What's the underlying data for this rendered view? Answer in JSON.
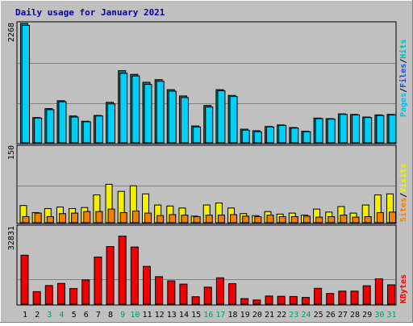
{
  "title": "Daily usage for January 2021",
  "colors": {
    "background": "#c0c0c0",
    "border_dark": "#808080",
    "title": "#0000a0",
    "hits": "#00c0c0",
    "hits_bar": "#30c0f0",
    "files": "#2050d0",
    "files_bar": "#00d0f8",
    "pages": "#00c0f0",
    "visits": "#f0f000",
    "sites": "#f08000",
    "kbytes": "#f00000",
    "weekend_label": "#00a060",
    "weekday_label": "#000000"
  },
  "legend_top": [
    "Pages",
    "/",
    "Files",
    "/",
    "Hits"
  ],
  "legend_mid": [
    "Sites",
    "/",
    "Visits"
  ],
  "legend_bottom": [
    "KBytes"
  ],
  "chart_data": [
    {
      "type": "bar",
      "panel": "hits-files",
      "max_label": "2268",
      "ylim": [
        0,
        2268
      ],
      "categories": [
        "1",
        "2",
        "3",
        "4",
        "5",
        "6",
        "7",
        "8",
        "9",
        "10",
        "11",
        "12",
        "13",
        "14",
        "15",
        "16",
        "17",
        "18",
        "19",
        "20",
        "21",
        "22",
        "23",
        "24",
        "25",
        "26",
        "27",
        "28",
        "29",
        "30",
        "31"
      ],
      "weekend": [
        false,
        false,
        true,
        true,
        false,
        false,
        false,
        false,
        true,
        true,
        false,
        false,
        false,
        false,
        false,
        true,
        true,
        false,
        false,
        false,
        false,
        false,
        true,
        true,
        false,
        false,
        false,
        false,
        false,
        true,
        true
      ],
      "series": [
        {
          "name": "Hits",
          "values": [
            2268,
            480,
            650,
            800,
            510,
            410,
            520,
            770,
            1370,
            1300,
            1150,
            1200,
            1010,
            890,
            320,
            710,
            1010,
            900,
            260,
            230,
            310,
            340,
            290,
            220,
            470,
            460,
            550,
            540,
            490,
            530,
            540
          ]
        },
        {
          "name": "Files",
          "values": [
            2230,
            470,
            630,
            780,
            490,
            400,
            510,
            740,
            1320,
            1270,
            1110,
            1170,
            980,
            860,
            300,
            680,
            990,
            880,
            240,
            210,
            300,
            330,
            280,
            210,
            460,
            450,
            540,
            530,
            480,
            520,
            530
          ]
        }
      ]
    },
    {
      "type": "bar",
      "panel": "visits-sites",
      "max_label": "150",
      "ylim": [
        0,
        150
      ],
      "series": [
        {
          "name": "Visits",
          "values": [
            34,
            20,
            28,
            31,
            28,
            30,
            55,
            76,
            62,
            73,
            57,
            35,
            33,
            29,
            13,
            35,
            39,
            29,
            18,
            14,
            22,
            17,
            19,
            15,
            27,
            21,
            32,
            19,
            35,
            55,
            57
          ]
        },
        {
          "name": "Sites",
          "values": [
            12,
            19,
            12,
            18,
            19,
            22,
            22,
            27,
            20,
            23,
            19,
            14,
            16,
            15,
            12,
            15,
            15,
            16,
            13,
            12,
            15,
            12,
            12,
            13,
            11,
            12,
            15,
            11,
            12,
            20,
            21
          ]
        }
      ]
    },
    {
      "type": "bar",
      "panel": "kbytes",
      "max_label": "32831",
      "ylim": [
        0,
        32831
      ],
      "series": [
        {
          "name": "KBytes",
          "values": [
            21000,
            5400,
            8000,
            8900,
            6700,
            10400,
            20200,
            24700,
            29200,
            24500,
            16200,
            11800,
            10000,
            8600,
            3200,
            7300,
            11300,
            8800,
            2400,
            1800,
            3500,
            3400,
            3300,
            2900,
            6800,
            4600,
            5600,
            5600,
            7900,
            10900,
            8300
          ]
        }
      ]
    }
  ]
}
